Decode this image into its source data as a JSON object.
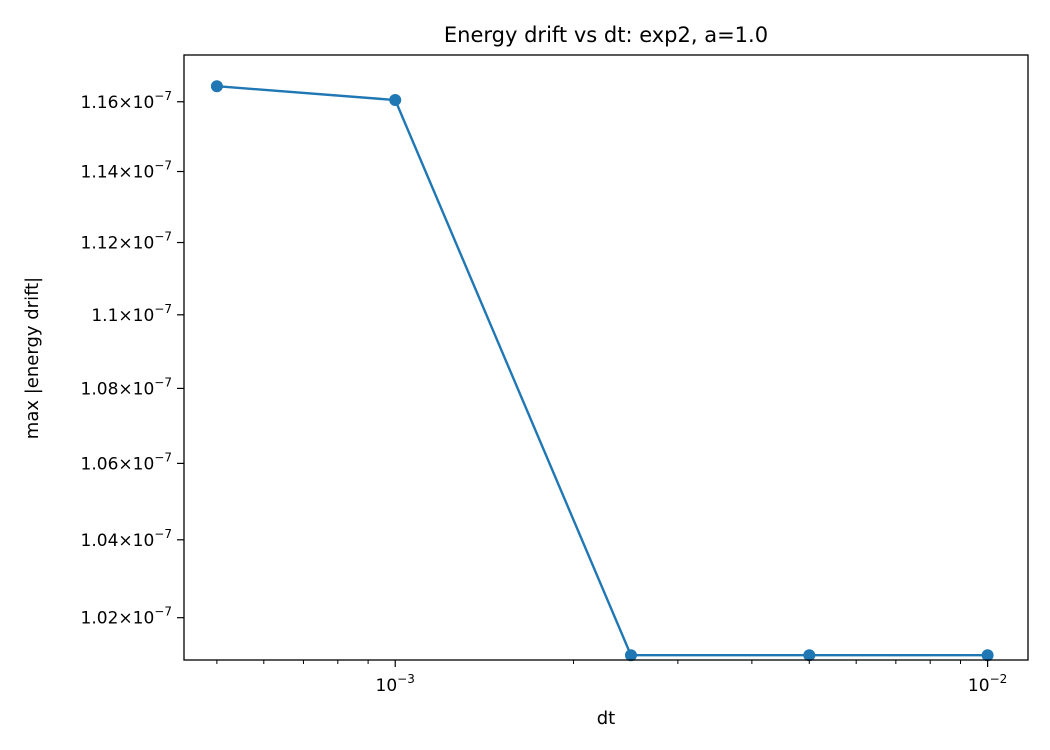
{
  "chart_data": {
    "type": "line",
    "title": "Energy drift vs dt: exp2, a=1.0",
    "xlabel": "dt",
    "ylabel": "max |energy drift|",
    "xscale": "log",
    "yscale": "log",
    "xlim": [
      0.00044,
      0.0117
    ],
    "ylim": [
      1.0093e-07,
      1.1736e-07
    ],
    "grid": false,
    "x_major_ticks": [
      {
        "value": 0.001,
        "base": "10",
        "exp": "−3"
      },
      {
        "value": 0.01,
        "base": "10",
        "exp": "−2"
      }
    ],
    "x_minor_ticks": [
      0.0005,
      0.0006,
      0.0007,
      0.0008,
      0.0009,
      0.002,
      0.003,
      0.004,
      0.005,
      0.006,
      0.007,
      0.008,
      0.009
    ],
    "y_ticks": [
      {
        "value": 1.02e-07,
        "mant": "1.02",
        "exp": "−7"
      },
      {
        "value": 1.04e-07,
        "mant": "1.04",
        "exp": "−7"
      },
      {
        "value": 1.06e-07,
        "mant": "1.06",
        "exp": "−7"
      },
      {
        "value": 1.08e-07,
        "mant": "1.08",
        "exp": "−7"
      },
      {
        "value": 1.1e-07,
        "mant": "1.1",
        "exp": "−7"
      },
      {
        "value": 1.12e-07,
        "mant": "1.12",
        "exp": "−7"
      },
      {
        "value": 1.14e-07,
        "mant": "1.14",
        "exp": "−7"
      },
      {
        "value": 1.16e-07,
        "mant": "1.16",
        "exp": "−7"
      }
    ],
    "series": [
      {
        "color": "#1f77b4",
        "marker": "circle",
        "x": [
          0.0005,
          0.001,
          0.0025,
          0.005,
          0.01
        ],
        "y": [
          1.1645e-07,
          1.1605e-07,
          1.0105e-07,
          1.0105e-07,
          1.0105e-07
        ]
      }
    ]
  }
}
